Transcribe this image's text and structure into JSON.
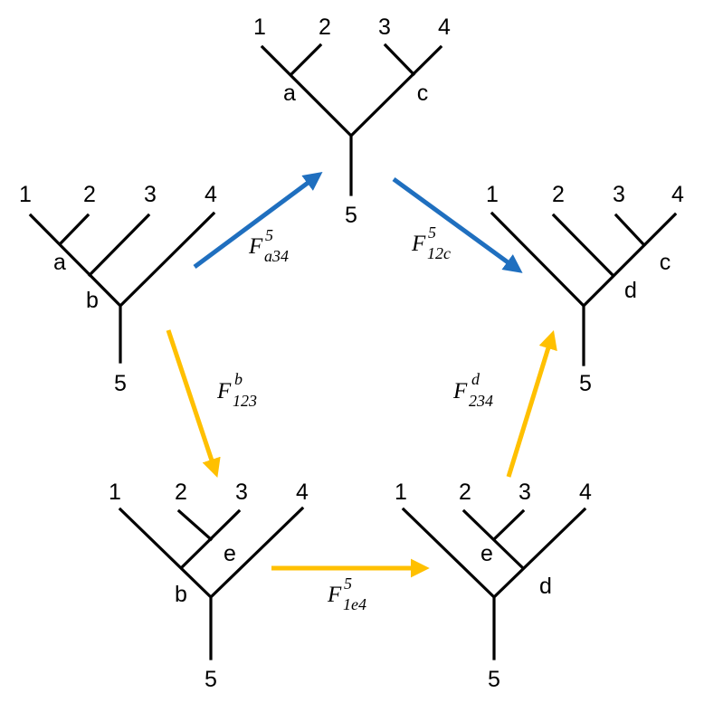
{
  "colors": {
    "blue": "#1f6fbf",
    "gold": "#ffc000",
    "tree": "#000000"
  },
  "trees": [
    {
      "id": "left",
      "leaves": [
        "1",
        "2",
        "3",
        "4"
      ],
      "root": "5",
      "internal": [
        "a",
        "b"
      ]
    },
    {
      "id": "top",
      "leaves": [
        "1",
        "2",
        "3",
        "4"
      ],
      "root": "5",
      "internal": [
        "a",
        "c"
      ]
    },
    {
      "id": "right",
      "leaves": [
        "1",
        "2",
        "3",
        "4"
      ],
      "root": "5",
      "internal": [
        "d",
        "c"
      ]
    },
    {
      "id": "bottom-left",
      "leaves": [
        "1",
        "2",
        "3",
        "4"
      ],
      "root": "5",
      "internal": [
        "e",
        "b"
      ]
    },
    {
      "id": "bottom-right",
      "leaves": [
        "1",
        "2",
        "3",
        "4"
      ],
      "root": "5",
      "internal": [
        "e",
        "d"
      ]
    }
  ],
  "moves": [
    {
      "id": "f-a34",
      "base": "F",
      "sup": "5",
      "sub": "a34",
      "color": "blue"
    },
    {
      "id": "f-12c",
      "base": "F",
      "sup": "5",
      "sub": "12c",
      "color": "blue"
    },
    {
      "id": "f-123",
      "base": "F",
      "sup": "b",
      "sub": "123",
      "color": "gold"
    },
    {
      "id": "f-1e4",
      "base": "F",
      "sup": "5",
      "sub": "1e4",
      "color": "gold"
    },
    {
      "id": "f-234",
      "base": "F",
      "sup": "d",
      "sub": "234",
      "color": "gold"
    }
  ]
}
